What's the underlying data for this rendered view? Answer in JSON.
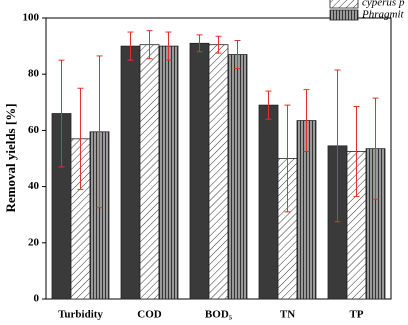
{
  "chart_data": {
    "type": "bar",
    "y_label": "Removal yields [%]",
    "categories": [
      "Turbidity",
      "COD",
      "BOD₅",
      "TN",
      "TP"
    ],
    "series": [
      {
        "color": "#3a3a3a",
        "pattern": "solid",
        "values": [
          66,
          90,
          91,
          69,
          54.5
        ],
        "errors": [
          19,
          5,
          3,
          5,
          27
        ]
      },
      {
        "name": "cyperus p",
        "color": "#ffffff",
        "pattern": "diagonal",
        "values": [
          57,
          90.5,
          90.5,
          50,
          52.5
        ],
        "errors": [
          18,
          5,
          3,
          19,
          16
        ]
      },
      {
        "name": "Phragmit",
        "color": "#9a9a9a",
        "pattern": "vertical",
        "values": [
          59.5,
          90,
          87,
          63.5,
          53.5
        ],
        "errors": [
          27,
          5,
          5,
          11,
          18
        ]
      }
    ],
    "error_color": "#e03030",
    "ylim": [
      0,
      100
    ],
    "yticks": [
      0,
      20,
      40,
      60,
      80,
      100
    ]
  }
}
